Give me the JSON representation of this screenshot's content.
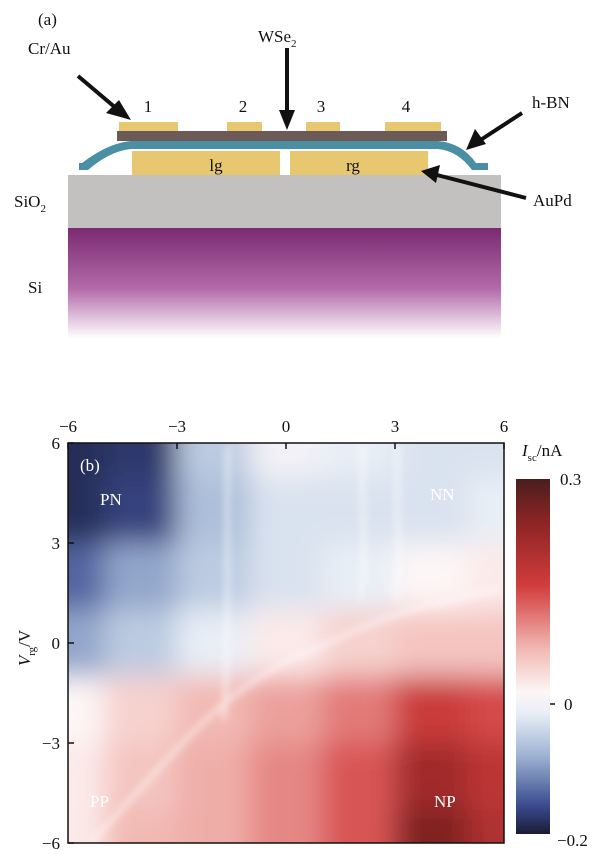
{
  "panel_a": {
    "label": "(a)",
    "labels": {
      "cr_au": "Cr/Au",
      "wse2_main": "WSe",
      "wse2_sub": "2",
      "hbn": "h-BN",
      "sio2_main": "SiO",
      "sio2_sub": "2",
      "si": "Si",
      "aupd": "AuPd",
      "lg": "lg",
      "rg": "rg"
    },
    "contacts": [
      "1",
      "2",
      "3",
      "4"
    ],
    "colors": {
      "gold": "#e8c771",
      "wse2": "#6b5a55",
      "hbn": "#4a8fa3",
      "sio2": "#c3c0c0",
      "si_top": "#7a2a72",
      "si_bottom": "#ffffff"
    }
  },
  "panel_b": {
    "label": "(b)",
    "region_labels": {
      "pn": "PN",
      "nn": "NN",
      "pp": "PP",
      "np": "NP"
    },
    "ylabel_main": "V",
    "ylabel_sub": "rg",
    "ylabel_unit": "/V",
    "colorbar_label_main": "I",
    "colorbar_label_sub": "sc",
    "colorbar_label_unit": "/nA",
    "colorbar_ticks": [
      "0.3",
      "0",
      "−0.2"
    ],
    "colorbar_colors": [
      "#4a1e1e",
      "#8c2424",
      "#d13c3c",
      "#f2b9b4",
      "#fbeeee",
      "#e8eef6",
      "#9eb3d3",
      "#3a4b8f",
      "#1b1c34"
    ]
  },
  "chart_data": {
    "type": "heatmap",
    "title": "",
    "xlabel": "",
    "ylabel": "V_rg/V",
    "x_ticks": [
      "−6",
      "−3",
      "0",
      "3",
      "6"
    ],
    "y_ticks": [
      "6",
      "3",
      "0",
      "−3",
      "−6"
    ],
    "xlim": [
      -6,
      6
    ],
    "ylim": [
      -6,
      6
    ],
    "colorbar": {
      "label": "I_sc/nA",
      "min": -0.2,
      "max": 0.3,
      "ticks": [
        0.3,
        0,
        -0.2
      ]
    },
    "grid": false,
    "x": [
      -6,
      -4,
      -2,
      0,
      2,
      4,
      6
    ],
    "y": [
      6,
      4,
      2,
      0,
      -2,
      -4,
      -6
    ],
    "values": [
      [
        -0.18,
        -0.17,
        -0.05,
        -0.01,
        -0.02,
        -0.03,
        -0.03
      ],
      [
        -0.18,
        -0.16,
        -0.06,
        -0.03,
        -0.03,
        -0.03,
        -0.02
      ],
      [
        -0.13,
        -0.08,
        -0.05,
        -0.03,
        -0.02,
        0.0,
        0.01
      ],
      [
        -0.08,
        -0.05,
        -0.02,
        0.01,
        0.03,
        0.04,
        0.04
      ],
      [
        0.0,
        0.03,
        0.05,
        0.07,
        0.1,
        0.16,
        0.14
      ],
      [
        0.01,
        0.04,
        0.06,
        0.09,
        0.13,
        0.22,
        0.18
      ],
      [
        0.01,
        0.05,
        0.06,
        0.09,
        0.13,
        0.26,
        0.2
      ]
    ]
  }
}
